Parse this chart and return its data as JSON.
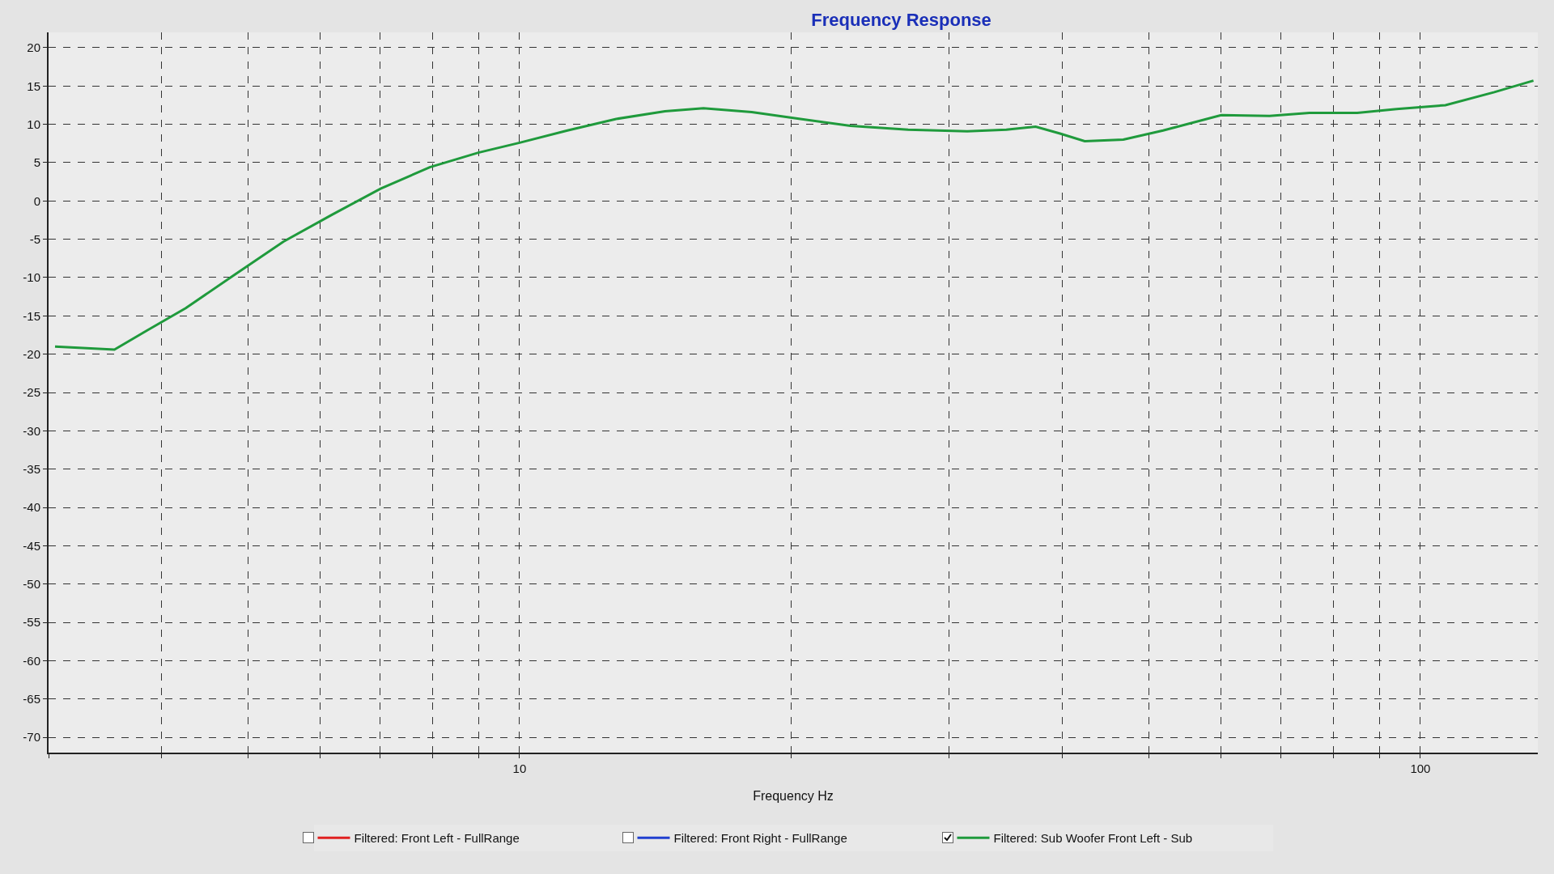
{
  "chart_data": {
    "type": "line",
    "title": "Frequency Response",
    "xlabel": "Frequency Hz",
    "log": "x",
    "grid": true,
    "legend": "bottom",
    "line_style": "solid",
    "marker": "none",
    "xlim": [
      3,
      135
    ],
    "xticks": [
      {
        "value": 3,
        "label": null
      },
      {
        "value": 4,
        "label": null
      },
      {
        "value": 5,
        "label": null
      },
      {
        "value": 6,
        "label": null
      },
      {
        "value": 7,
        "label": null
      },
      {
        "value": 8,
        "label": null
      },
      {
        "value": 9,
        "label": null
      },
      10,
      {
        "value": 20,
        "label": null
      },
      {
        "value": 30,
        "label": null
      },
      {
        "value": 40,
        "label": null
      },
      {
        "value": 50,
        "label": null
      },
      {
        "value": 60,
        "label": null
      },
      {
        "value": 70,
        "label": null
      },
      {
        "value": 80,
        "label": null
      },
      {
        "value": 90,
        "label": null
      },
      100
    ],
    "ylim": [
      -72,
      22
    ],
    "yticks": [
      -70,
      -65,
      -60,
      -55,
      -50,
      -45,
      -40,
      -35,
      -30,
      -25,
      -20,
      -15,
      -10,
      -5,
      0,
      5,
      10,
      15,
      20
    ],
    "series": [
      {
        "name": "Filtered: Front Left - FullRange",
        "color": "#e02020"
      },
      {
        "name": "Filtered: Front Right - FullRange",
        "color": "#2040d0"
      },
      {
        "name": "Filtered: Sub Woofer Front Left - Sub",
        "color": "#1f9a3c",
        "x": [
          3.05,
          3.55,
          3.86,
          4.26,
          4.83,
          5.47,
          6.19,
          7.01,
          7.95,
          9.0,
          10,
          11.3,
          12.8,
          14.5,
          16.0,
          18.1,
          20.5,
          23.3,
          27.0,
          31.4,
          34.7,
          37.4,
          39.8,
          42.4,
          46.8,
          51.8,
          60.1,
          68.0,
          75.3,
          85.1,
          94.1,
          106.6,
          120.8,
          133.5
        ],
        "values": [
          -19,
          -19.4,
          -16.9,
          -14,
          -9.6,
          -5.3,
          -1.8,
          1.6,
          4.4,
          6.3,
          7.6,
          9.2,
          10.7,
          11.7,
          12.1,
          11.6,
          10.7,
          9.8,
          9.3,
          9.1,
          9.3,
          9.7,
          8.8,
          7.8,
          8.0,
          9.2,
          11.2,
          11.1,
          11.5,
          11.5,
          12.0,
          12.5,
          14.2,
          15.7
        ]
      }
    ]
  }
}
